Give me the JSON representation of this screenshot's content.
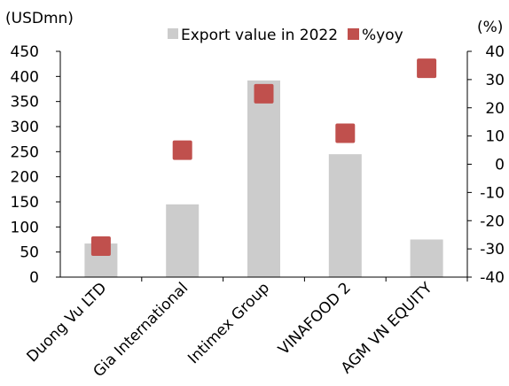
{
  "chart_data": {
    "type": "bar",
    "title": "",
    "left_unit": "(USDmn)",
    "right_unit": "(%)",
    "categories": [
      "Duong Vu LTD",
      "Gia International",
      "Intimex Group",
      "VINAFOOD 2",
      "AGM VN EQUITY"
    ],
    "series": [
      {
        "name": "Export value in 2022",
        "type": "bar",
        "axis": "left",
        "color": "#cccccc",
        "values": [
          67,
          145,
          392,
          245,
          75
        ]
      },
      {
        "name": "%yoy",
        "type": "marker",
        "axis": "right",
        "color": "#c0504d",
        "values": [
          -29,
          5,
          25,
          11,
          34
        ]
      }
    ],
    "left_axis": {
      "min": 0,
      "max": 450,
      "ticks": [
        "0",
        "50",
        "100",
        "150",
        "200",
        "250",
        "300",
        "350",
        "400",
        "450"
      ]
    },
    "right_axis": {
      "min": -40,
      "max": 40,
      "ticks": [
        "-40",
        "-30",
        "-20",
        "-10",
        "0",
        "10",
        "20",
        "30",
        "40"
      ]
    },
    "grid": false,
    "legend_position": "top"
  }
}
